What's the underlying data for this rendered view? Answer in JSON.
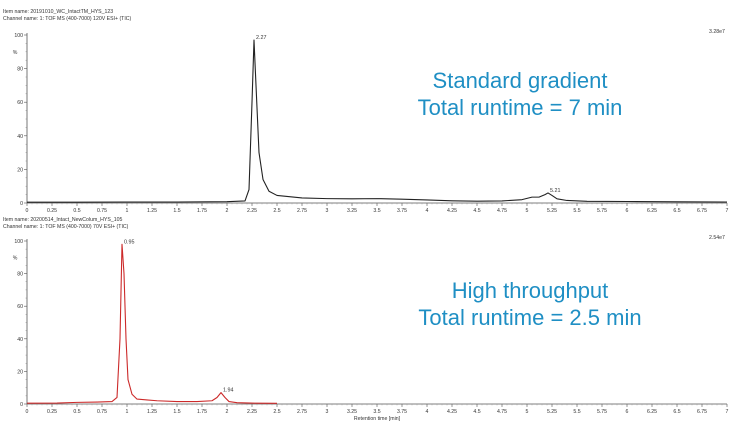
{
  "chart_data": [
    {
      "type": "line",
      "item_name": "Item name: 20191010_WC_IntactTM_HYS_123",
      "channel_name": "Channel name: 1: TOF MS (400-7000) 120V ESI+ (TIC)",
      "scale_label": "3.28e7",
      "y_unit": "%",
      "ylim": [
        0,
        100
      ],
      "y_ticks": [
        0,
        20,
        40,
        60,
        80,
        100
      ],
      "xlim": [
        0,
        7
      ],
      "x_ticks": [
        "0",
        "0.25",
        "0.5",
        "0.75",
        "1",
        "1.25",
        "1.5",
        "1.75",
        "2",
        "2.25",
        "2.5",
        "2.75",
        "3",
        "3.25",
        "3.5",
        "3.75",
        "4",
        "4.25",
        "4.5",
        "4.75",
        "5",
        "5.25",
        "5.5",
        "5.75",
        "6",
        "6.25",
        "6.5",
        "6.75",
        "7"
      ],
      "line_color": "#222222",
      "annotation": [
        "Standard gradient",
        "Total runtime = 7 min"
      ],
      "peak_labels": [
        {
          "x": 2.27,
          "y": 97,
          "label": "2.27"
        },
        {
          "x": 5.21,
          "y": 6,
          "label": "5.21"
        }
      ],
      "x": [
        0,
        0.5,
        1.0,
        1.5,
        2.0,
        2.18,
        2.22,
        2.25,
        2.27,
        2.29,
        2.32,
        2.36,
        2.42,
        2.5,
        2.75,
        3.0,
        3.25,
        3.5,
        3.75,
        4.0,
        4.25,
        4.5,
        4.75,
        4.95,
        5.05,
        5.12,
        5.18,
        5.21,
        5.25,
        5.3,
        5.4,
        5.6,
        6.0,
        6.5,
        7.0
      ],
      "values": [
        0.5,
        0.5,
        0.6,
        0.6,
        0.8,
        1.2,
        8,
        60,
        97,
        70,
        30,
        14,
        7,
        4.5,
        3.0,
        2.6,
        2.5,
        2.6,
        2.3,
        1.8,
        1.3,
        1.1,
        1.2,
        2.0,
        3.5,
        3.5,
        5.0,
        6.0,
        4.5,
        2.5,
        1.5,
        1.0,
        0.9,
        0.7,
        0.6
      ]
    },
    {
      "type": "line",
      "item_name": "Item name: 20200514_Intact_NewColum_HYS_105",
      "channel_name": "Channel name: 1: TOF MS (400-7000) 70V ESI+ (TIC)",
      "scale_label": "2.54e7",
      "y_unit": "%",
      "ylim": [
        0,
        100
      ],
      "y_ticks": [
        0,
        20,
        40,
        60,
        80,
        100
      ],
      "xlim": [
        0,
        7
      ],
      "x_ticks": [
        "0",
        "0.25",
        "0.5",
        "0.75",
        "1",
        "1.25",
        "1.5",
        "1.75",
        "2",
        "2.25",
        "2.5",
        "2.75",
        "3",
        "3.25",
        "3.5",
        "3.75",
        "4",
        "4.25",
        "4.5",
        "4.75",
        "5",
        "5.25",
        "5.5",
        "5.75",
        "6",
        "6.25",
        "6.5",
        "6.75",
        "7"
      ],
      "xlabel": "Retention time [min]",
      "line_color": "#cc2a2a",
      "annotation": [
        "High throughput",
        "Total runtime = 2.5 min"
      ],
      "peak_labels": [
        {
          "x": 0.95,
          "y": 98,
          "label": "0.95"
        },
        {
          "x": 1.94,
          "y": 7,
          "label": "1.94"
        }
      ],
      "x": [
        0,
        0.3,
        0.5,
        0.7,
        0.85,
        0.9,
        0.93,
        0.95,
        0.97,
        0.99,
        1.01,
        1.05,
        1.1,
        1.2,
        1.3,
        1.5,
        1.7,
        1.85,
        1.9,
        1.94,
        1.98,
        2.02,
        2.1,
        2.3,
        2.5
      ],
      "values": [
        0.5,
        0.6,
        1.0,
        1.2,
        1.5,
        4,
        40,
        98,
        80,
        40,
        15,
        6,
        3,
        2.5,
        2.0,
        1.5,
        1.5,
        2,
        4,
        7,
        4,
        1.5,
        0.8,
        0.5,
        0.4
      ]
    }
  ]
}
